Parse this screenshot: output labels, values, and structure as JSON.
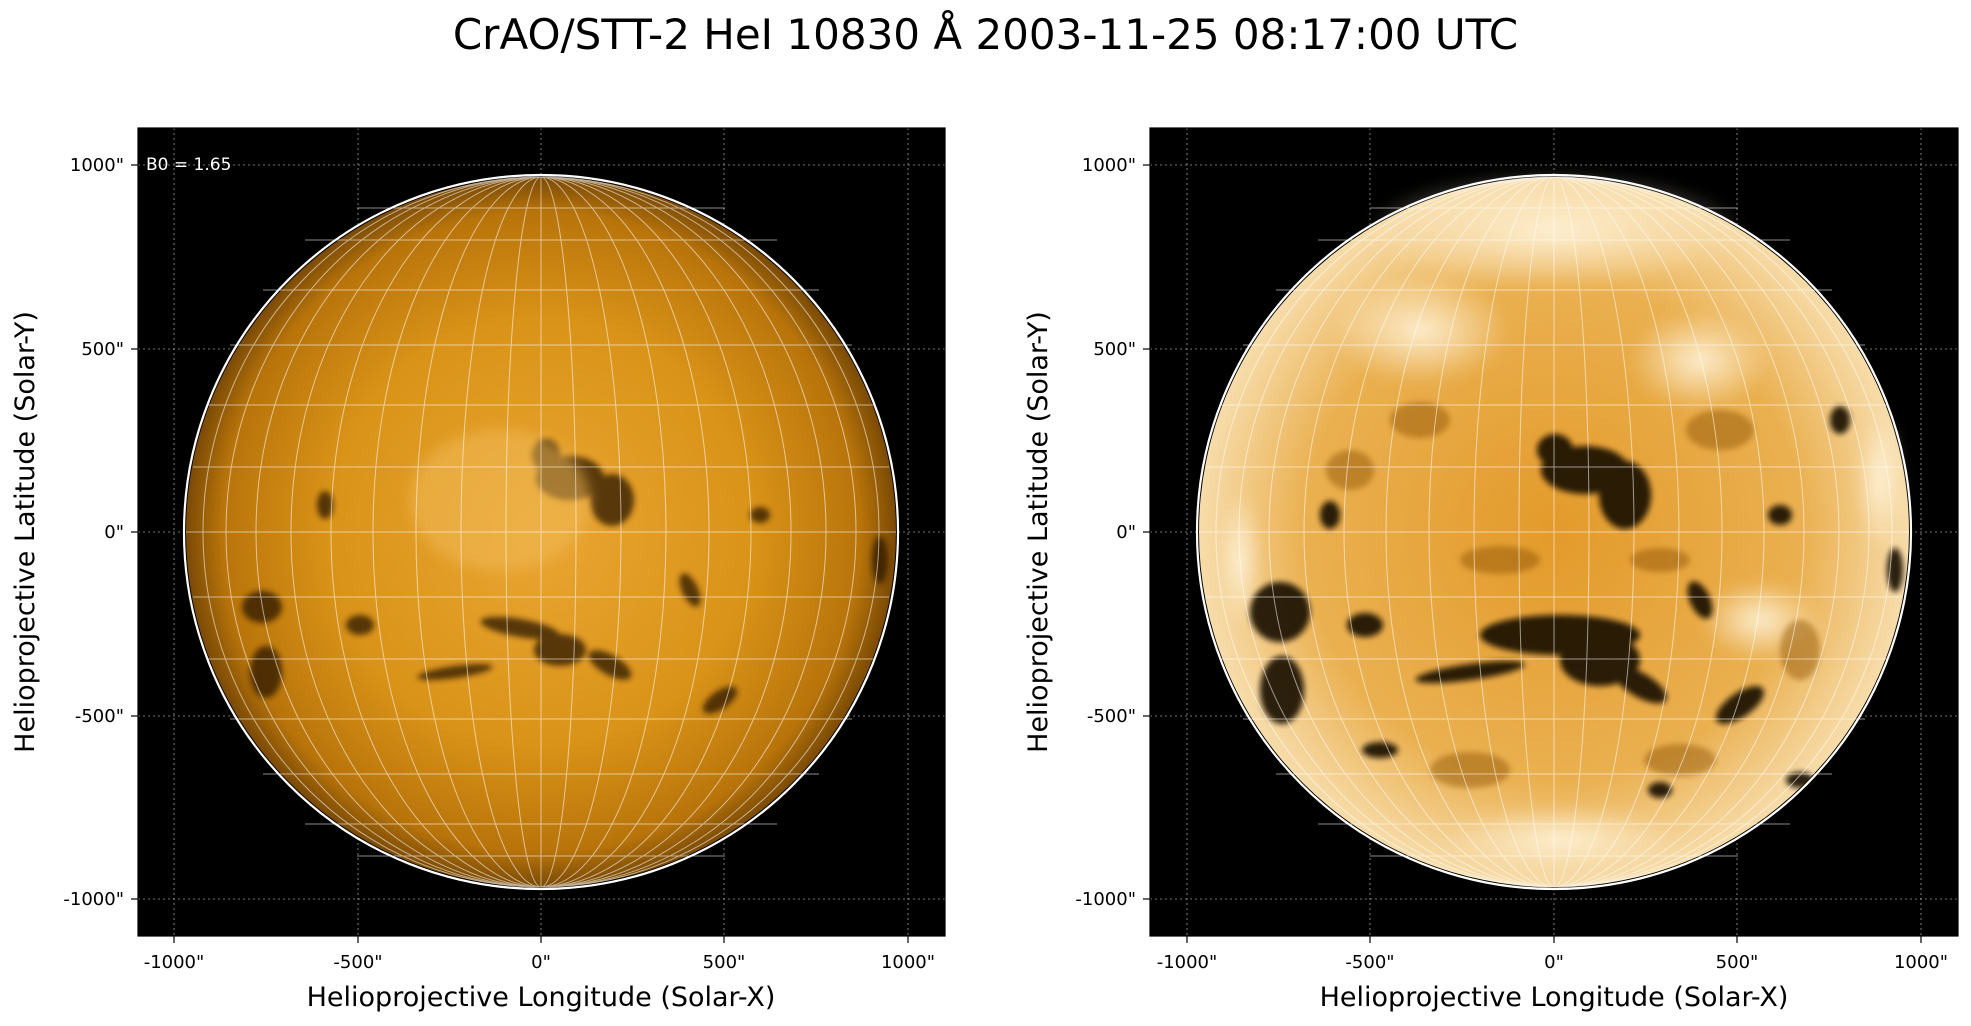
{
  "title": "CrAO/STT-2 HeI 10830 Å 2003-11-25 08:17:00 UTC",
  "colors": {
    "frame": "#000000",
    "disk": "#d58b10",
    "limb": "#ffffff",
    "grid": "#ffffff"
  },
  "panels": [
    {
      "name": "left",
      "xlabel": "Helioprojective Longitude (Solar-X)",
      "ylabel": "Helioprojective Latitude (Solar-Y)",
      "annotation": "B0 = 1.65",
      "xticks": [
        "-1000\"",
        "-500\"",
        "0\"",
        "500\"",
        "1000\""
      ],
      "yticks": [
        "1000\"",
        "500\"",
        "0\"",
        "-500\"",
        "-1000\""
      ]
    },
    {
      "name": "right",
      "xlabel": "Helioprojective Longitude (Solar-X)",
      "ylabel": "Helioprojective Latitude (Solar-Y)",
      "annotation": "",
      "xticks": [
        "-1000\"",
        "-500\"",
        "0\"",
        "500\"",
        "1000\""
      ],
      "yticks": [
        "1000\"",
        "500\"",
        "0\"",
        "-500\"",
        "-1000\""
      ]
    }
  ]
}
